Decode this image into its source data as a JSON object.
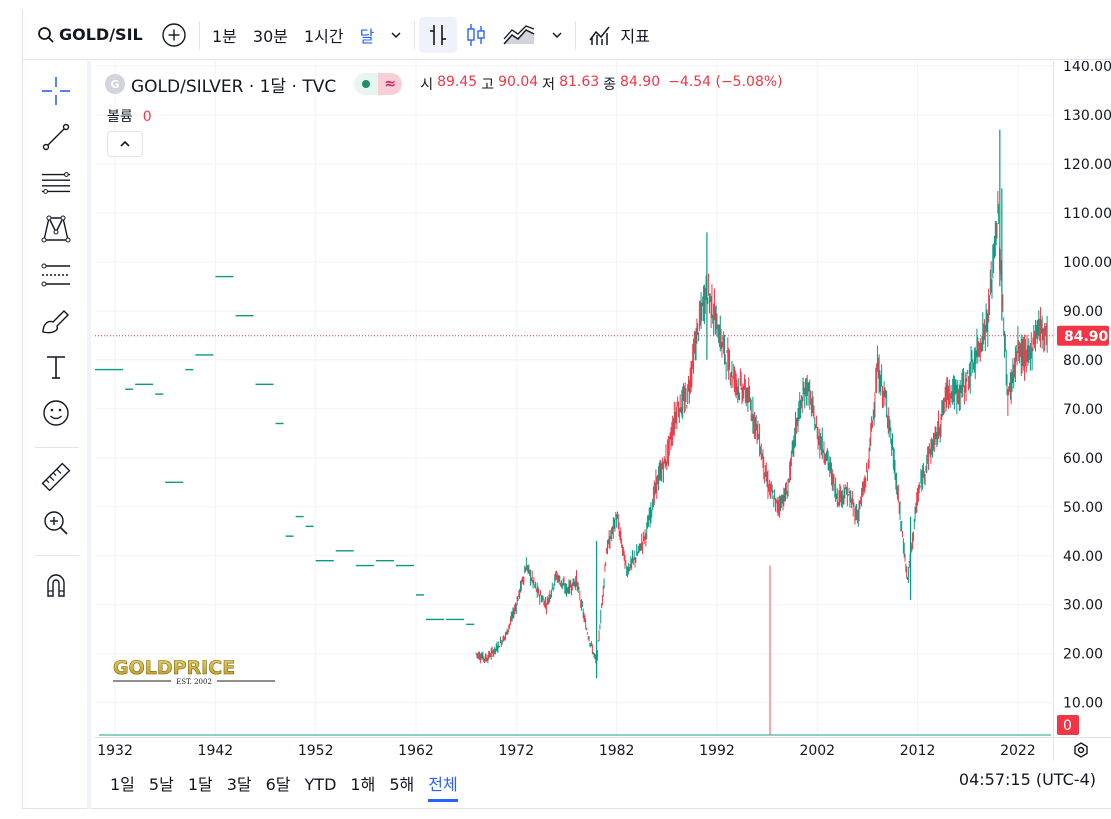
{
  "toolbar": {
    "symbol": "GOLD/SIL",
    "intervals": [
      "1분",
      "30분",
      "1시간"
    ],
    "selected_interval": "달",
    "indicators_label": "지표"
  },
  "drawing_tools": [
    "crosshair-icon",
    "trend-line-icon",
    "fib-retracement-icon",
    "xabcd-pattern-icon",
    "forecast-icon",
    "brush-icon",
    "text-icon",
    "emoji-icon",
    "ruler-icon",
    "zoom-in-icon",
    "magnet-icon"
  ],
  "legend": {
    "logo_letter": "G",
    "title": "GOLD/SILVER · 1달 · TVC",
    "open_label": "시",
    "open": "89.45",
    "high_label": "고",
    "high": "90.04",
    "low_label": "저",
    "low": "81.63",
    "close_label": "종",
    "close": "84.90",
    "change": "−4.54 (−5.08%)"
  },
  "volume": {
    "label": "볼륨",
    "value": "0"
  },
  "price_axis": {
    "ticks": [
      "140.00",
      "130.00",
      "120.00",
      "110.00",
      "100.00",
      "90.00",
      "80.00",
      "70.00",
      "60.00",
      "50.00",
      "40.00",
      "30.00",
      "20.00",
      "10.00"
    ],
    "last_price": "84.90",
    "last_volume": "0"
  },
  "time_axis": {
    "ticks": [
      "1932",
      "1942",
      "1952",
      "1962",
      "1972",
      "1982",
      "1992",
      "2002",
      "2012",
      "2022"
    ]
  },
  "watermark": {
    "brand": "GOLDPRICE",
    "sub": "EST. 2002"
  },
  "bottom_bar": {
    "ranges": [
      "1일",
      "5날",
      "1달",
      "3달",
      "6달",
      "YTD",
      "1해",
      "5해",
      "전체"
    ],
    "active_range": "전체",
    "clock": "04:57:15 (UTC-4)"
  },
  "colors": {
    "up": "#089981",
    "down": "#f23645",
    "accent": "#2962ff",
    "grid": "#f0f3fa"
  },
  "chart_data": {
    "type": "line",
    "title": "GOLD/SILVER · 1달 · TVC",
    "xlabel": "",
    "ylabel": "",
    "xlim": [
      1930,
      2025.5
    ],
    "ylim": [
      3,
      141
    ],
    "x": [
      1930,
      1933,
      1934,
      1936,
      1937,
      1939,
      1940,
      1942,
      1944,
      1946,
      1948,
      1949,
      1950,
      1951,
      1952,
      1954,
      1956,
      1958,
      1960,
      1962,
      1963,
      1965,
      1967,
      1968,
      1969,
      1970,
      1971,
      1972,
      1973,
      1974,
      1975,
      1976,
      1977,
      1978,
      1979,
      1980,
      1981,
      1982,
      1983,
      1984,
      1985,
      1986,
      1987,
      1988,
      1989,
      1990,
      1991,
      1992,
      1993,
      1994,
      1995,
      1996,
      1997,
      1998,
      1999,
      2000,
      2001,
      2002,
      2003,
      2004,
      2005,
      2006,
      2007,
      2008,
      2009,
      2010,
      2011,
      2012,
      2013,
      2014,
      2015,
      2016,
      2017,
      2018,
      2019,
      2020,
      2021,
      2022,
      2023,
      2024,
      2025
    ],
    "values": [
      78,
      74,
      75,
      73,
      55,
      78,
      81,
      97,
      89,
      75,
      67,
      44,
      48,
      46,
      39,
      41,
      38,
      39,
      38,
      32,
      27,
      27,
      26,
      20,
      19,
      21,
      24,
      30,
      38,
      33,
      30,
      36,
      33,
      35,
      25,
      18,
      41,
      48,
      37,
      40,
      45,
      55,
      60,
      70,
      72,
      85,
      95,
      87,
      80,
      75,
      73,
      66,
      55,
      50,
      53,
      68,
      75,
      65,
      60,
      52,
      53,
      48,
      57,
      78,
      70,
      53,
      35,
      52,
      60,
      65,
      74,
      73,
      76,
      82,
      88,
      110,
      72,
      82,
      80,
      87,
      84.9
    ],
    "volume_spike": {
      "x": 1997.3,
      "value": 38
    },
    "last_price": 84.9,
    "grid": true,
    "legend": "top-left"
  }
}
